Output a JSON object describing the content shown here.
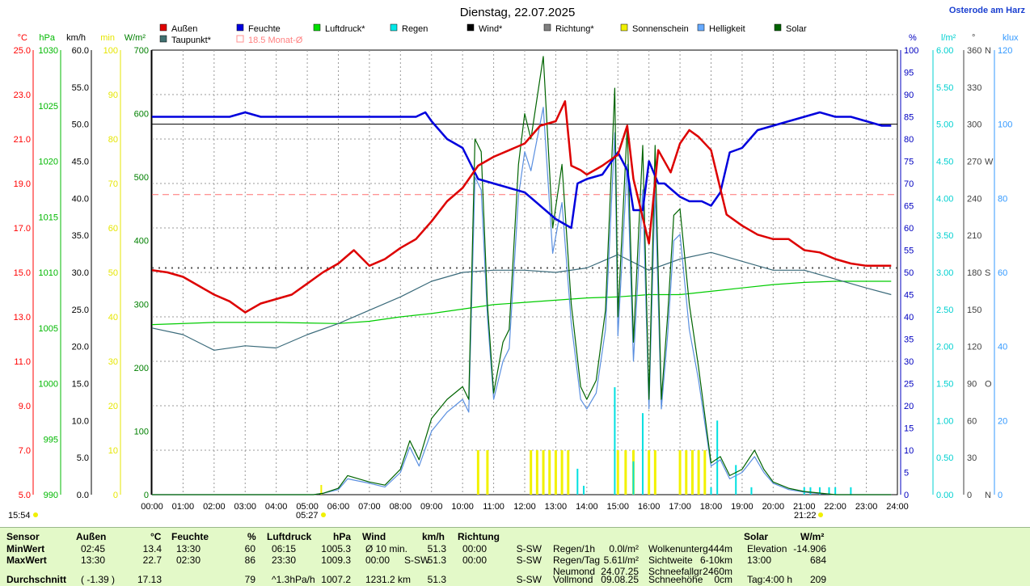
{
  "title": "Dienstag, 22.07.2025",
  "location": "Osterode am Harz",
  "chart_data": {
    "type": "line",
    "x_range": [
      0,
      24
    ],
    "x_ticks": [
      "00:00",
      "01:00",
      "02:00",
      "03:00",
      "04:00",
      "05:00",
      "06:00",
      "07:00",
      "08:00",
      "09:00",
      "10:00",
      "11:00",
      "12:00",
      "13:00",
      "14:00",
      "15:00",
      "16:00",
      "17:00",
      "18:00",
      "19:00",
      "20:00",
      "21:00",
      "22:00",
      "23:00",
      "24:00"
    ],
    "axes": {
      "temp": {
        "unit": "°C",
        "color": "#ff0000",
        "range": [
          5,
          25
        ],
        "ticks": [
          "5.0",
          "7.0",
          "9.0",
          "11.0",
          "13.0",
          "15.0",
          "17.0",
          "19.0",
          "21.0",
          "23.0",
          "25.0"
        ]
      },
      "press": {
        "unit": "hPa",
        "color": "#00b800",
        "range": [
          990,
          1030
        ],
        "ticks": [
          "990",
          "995",
          "1000",
          "1005",
          "1010",
          "1015",
          "1020",
          "1025",
          "1030"
        ]
      },
      "wind": {
        "unit": "km/h",
        "color": "#000000",
        "range": [
          0,
          60
        ],
        "ticks": [
          "0.0",
          "5.0",
          "10.0",
          "15.0",
          "20.0",
          "25.0",
          "30.0",
          "35.0",
          "40.0",
          "45.0",
          "50.0",
          "55.0",
          "60.0"
        ]
      },
      "sun": {
        "unit": "min",
        "color": "#e6e600",
        "range": [
          0,
          100
        ],
        "ticks": [
          "0",
          "10",
          "20",
          "30",
          "40",
          "50",
          "60",
          "70",
          "80",
          "90",
          "100"
        ]
      },
      "solar": {
        "unit": "W/m²",
        "color": "#008000",
        "range": [
          0,
          700
        ],
        "ticks": [
          "0",
          "100",
          "200",
          "300",
          "400",
          "500",
          "600",
          "700"
        ]
      },
      "hum": {
        "unit": "%",
        "color": "#0000c0",
        "range": [
          0,
          100
        ],
        "ticks": [
          "0",
          "5",
          "10",
          "15",
          "20",
          "25",
          "30",
          "35",
          "40",
          "45",
          "50",
          "55",
          "60",
          "65",
          "70",
          "75",
          "80",
          "85",
          "90",
          "95",
          "100"
        ]
      },
      "rain": {
        "unit": "l/m²",
        "color": "#00d0d0",
        "range": [
          0,
          6
        ],
        "ticks": [
          "0.00",
          "0.50",
          "1.00",
          "1.50",
          "2.00",
          "2.50",
          "3.00",
          "3.50",
          "4.00",
          "4.50",
          "5.00",
          "5.50",
          "6.00"
        ]
      },
      "dir": {
        "unit": "°",
        "color": "#404040",
        "range": [
          0,
          360
        ],
        "ticks": [
          "0",
          "30",
          "60",
          "90",
          "120",
          "150",
          "180",
          "210",
          "240",
          "270",
          "300",
          "330",
          "360"
        ],
        "letters": [
          "N",
          "",
          "",
          "O",
          "",
          "",
          "S",
          "",
          "",
          "W",
          "",
          "",
          "N"
        ]
      },
      "lux": {
        "unit": "klux",
        "color": "#3399ff",
        "range": [
          0,
          120
        ],
        "ticks": [
          "0",
          "20",
          "40",
          "60",
          "80",
          "100",
          "120"
        ]
      }
    },
    "legend": [
      {
        "name": "Außen",
        "color": "#e00000"
      },
      {
        "name": "Feuchte",
        "color": "#0000e0"
      },
      {
        "name": "Luftdruck*",
        "color": "#00e000"
      },
      {
        "name": "Regen",
        "color": "#00e8e8"
      },
      {
        "name": "Wind*",
        "color": "#000000"
      },
      {
        "name": "Richtung*",
        "color": "#808080"
      },
      {
        "name": "Sonnenschein",
        "color": "#f0f000"
      },
      {
        "name": "Helligkeit",
        "color": "#66aaff"
      },
      {
        "name": "Solar",
        "color": "#006400"
      },
      {
        "name": "Taupunkt*",
        "color": "#407070"
      },
      {
        "name": "18.5 Monat-Ø",
        "color": "#ff9090"
      }
    ],
    "month_avg_temp": 18.5,
    "dotted_ref_temp": 15.2,
    "wind_dir_line": 300,
    "sunrise": "05:27",
    "sunset": "21:22",
    "current_time": "15:54",
    "series": [
      {
        "name": "Außen",
        "axis": "temp",
        "color": "#dd0000",
        "width": 2.5,
        "x": [
          0,
          0.5,
          1,
          1.5,
          2,
          2.5,
          3,
          3.5,
          4,
          4.5,
          5,
          5.5,
          6,
          6.5,
          7,
          7.5,
          8,
          8.5,
          9,
          9.5,
          10,
          10.5,
          11,
          11.5,
          12,
          12.5,
          13,
          13.3,
          13.5,
          13.8,
          14,
          14.5,
          15,
          15.3,
          15.5,
          16,
          16.3,
          16.7,
          17,
          17.3,
          17.6,
          18,
          18.5,
          19,
          19.5,
          20,
          20.5,
          21,
          21.5,
          22,
          22.5,
          23,
          23.5,
          23.8
        ],
        "y": [
          15.1,
          15.0,
          14.8,
          14.4,
          14.0,
          13.7,
          13.2,
          13.6,
          13.8,
          14.0,
          14.5,
          15.0,
          15.4,
          16.0,
          15.3,
          15.6,
          16.1,
          16.5,
          17.3,
          18.2,
          18.8,
          19.8,
          20.2,
          20.5,
          20.8,
          21.6,
          21.8,
          22.7,
          19.8,
          19.6,
          19.4,
          19.8,
          20.3,
          21.6,
          19.2,
          16.3,
          20.5,
          19.5,
          20.8,
          21.4,
          21.1,
          20.5,
          17.6,
          17.1,
          16.7,
          16.5,
          16.5,
          16.0,
          15.9,
          15.6,
          15.4,
          15.3,
          15.3,
          15.3
        ]
      },
      {
        "name": "Feuchte",
        "axis": "hum",
        "color": "#0000dd",
        "width": 2.5,
        "x": [
          0,
          1,
          2,
          2.5,
          3,
          3.5,
          4,
          5,
          6,
          7,
          8,
          8.5,
          8.8,
          9,
          9.5,
          10,
          10.5,
          11,
          11.5,
          12,
          12.5,
          13,
          13.5,
          13.7,
          14,
          14.5,
          15,
          15.3,
          15.5,
          15.8,
          16,
          16.3,
          16.5,
          17,
          17.3,
          17.7,
          18,
          18.3,
          18.6,
          19,
          19.5,
          20,
          20.5,
          21,
          21.5,
          22,
          22.5,
          23,
          23.5,
          23.8
        ],
        "y": [
          85,
          85,
          85,
          85,
          86,
          85,
          85,
          85,
          85,
          85,
          85,
          85,
          86,
          84,
          80,
          78,
          71,
          70,
          69,
          68,
          65,
          62,
          60,
          70,
          71,
          72,
          77,
          73,
          64,
          64,
          75,
          70,
          70,
          67,
          66,
          66,
          65,
          68,
          77,
          78,
          82,
          83,
          84,
          85,
          86,
          85,
          85,
          84,
          83,
          83
        ]
      },
      {
        "name": "Luftdruck*",
        "axis": "press",
        "color": "#00cc00",
        "width": 1.2,
        "x": [
          0,
          2,
          4,
          6,
          7,
          8,
          9,
          10,
          11,
          12,
          13,
          14,
          15,
          16,
          17,
          18,
          19,
          20,
          21,
          22,
          23,
          23.8
        ],
        "y": [
          1005.3,
          1005.5,
          1005.5,
          1005.4,
          1005.6,
          1006.0,
          1006.3,
          1006.7,
          1007.1,
          1007.3,
          1007.5,
          1007.7,
          1007.8,
          1008.0,
          1008.0,
          1008.3,
          1008.6,
          1008.9,
          1009.1,
          1009.2,
          1009.2,
          1009.2
        ]
      },
      {
        "name": "Taupunkt*",
        "axis": "temp",
        "color": "#3a6a7a",
        "width": 1.2,
        "x": [
          0,
          1,
          2,
          3,
          4,
          5,
          6,
          7,
          8,
          9,
          10,
          11,
          12,
          13,
          14,
          15,
          16,
          17,
          18,
          19,
          20,
          21,
          22,
          23,
          23.8
        ],
        "y": [
          12.5,
          12.2,
          11.5,
          11.7,
          11.6,
          12.2,
          12.7,
          13.3,
          13.9,
          14.6,
          15.0,
          15.1,
          15.1,
          15.0,
          15.2,
          15.8,
          15.1,
          15.6,
          15.9,
          15.5,
          15.1,
          15.1,
          14.7,
          14.3,
          14.0
        ]
      },
      {
        "name": "Solar",
        "axis": "solar",
        "color": "#006400",
        "width": 1.2,
        "x": [
          0,
          4.5,
          5.2,
          5.5,
          6,
          6.3,
          7,
          7.5,
          8,
          8.3,
          8.6,
          9,
          9.5,
          10,
          10.2,
          10.4,
          10.6,
          10.8,
          11,
          11.3,
          11.5,
          11.8,
          12,
          12.2,
          12.6,
          12.9,
          13.2,
          13.5,
          13.8,
          14,
          14.3,
          14.6,
          14.9,
          15,
          15.3,
          15.5,
          15.8,
          16,
          16.2,
          16.4,
          16.6,
          16.8,
          17,
          17.3,
          17.6,
          18,
          18.3,
          18.6,
          19,
          19.4,
          19.7,
          20,
          20.5,
          21,
          21.4,
          22,
          23,
          23.8
        ],
        "y": [
          0,
          0,
          0,
          2,
          10,
          30,
          20,
          15,
          40,
          85,
          55,
          120,
          150,
          170,
          150,
          560,
          540,
          300,
          160,
          240,
          260,
          520,
          600,
          560,
          690,
          420,
          520,
          300,
          170,
          150,
          180,
          290,
          640,
          280,
          580,
          240,
          550,
          150,
          550,
          150,
          280,
          440,
          450,
          300,
          200,
          50,
          60,
          30,
          40,
          70,
          40,
          20,
          10,
          5,
          3,
          0,
          0,
          0
        ]
      },
      {
        "name": "Helligkeit",
        "axis": "solar",
        "color": "#5a8fe0",
        "width": 1.2,
        "x": [
          0,
          4.5,
          5.2,
          5.5,
          6,
          6.3,
          7,
          7.5,
          8,
          8.3,
          8.6,
          9,
          9.5,
          10,
          10.2,
          10.4,
          10.6,
          10.8,
          11,
          11.3,
          11.5,
          11.8,
          12,
          12.2,
          12.6,
          12.9,
          13.2,
          13.5,
          13.8,
          14,
          14.3,
          14.6,
          14.9,
          15,
          15.3,
          15.5,
          15.8,
          16,
          16.2,
          16.4,
          16.6,
          16.8,
          17,
          17.3,
          17.6,
          18,
          18.3,
          18.6,
          19,
          19.4,
          19.7,
          20,
          20.5,
          21,
          21.4,
          22,
          23,
          23.8
        ],
        "y": [
          0,
          0,
          0,
          2,
          8,
          25,
          18,
          12,
          35,
          75,
          45,
          100,
          130,
          150,
          130,
          500,
          480,
          280,
          150,
          210,
          230,
          470,
          540,
          510,
          610,
          380,
          460,
          270,
          150,
          135,
          160,
          260,
          570,
          250,
          520,
          210,
          480,
          135,
          480,
          135,
          250,
          400,
          410,
          260,
          180,
          45,
          55,
          25,
          35,
          60,
          35,
          18,
          8,
          4,
          2,
          0,
          0,
          0
        ]
      }
    ],
    "wind_dir_const": 85.0,
    "sun_bars_x": [
      10.5,
      10.8,
      12.2,
      12.4,
      12.6,
      12.8,
      13.0,
      13.2,
      13.4,
      15.0,
      15.25,
      15.5,
      16.0,
      16.2,
      17.0,
      17.2,
      17.4,
      17.6,
      17.8
    ],
    "sun_bars_val": [
      10,
      10,
      10,
      10,
      10,
      10,
      10,
      10,
      10,
      10,
      10,
      10,
      10,
      10,
      10,
      10,
      10,
      10,
      10
    ],
    "rain_bars_x": [
      13.7,
      13.9,
      14.9,
      15.5,
      15.8,
      18.0,
      18.2,
      18.8,
      19.3,
      21.0,
      21.2,
      21.5,
      21.8,
      22.0,
      22.5
    ],
    "rain_bars_val": [
      0.35,
      0.12,
      1.45,
      0.45,
      1.1,
      0.1,
      1.0,
      0.4,
      0.1,
      0.1,
      0.1,
      0.1,
      0.1,
      0.1,
      0.1
    ]
  },
  "table": {
    "headers": {
      "sensor": "Sensor",
      "aussen": "Außen",
      "aussen_unit": "°C",
      "feuchte": "Feuchte",
      "feuchte_unit": "%",
      "druck": "Luftdruck",
      "druck_unit": "hPa",
      "wind": "Wind",
      "wind_unit": "km/h",
      "richtung": "Richtung",
      "solar": "Solar",
      "solar_unit": "W/m²"
    },
    "rows": [
      {
        "label": "MinWert",
        "a_t": "02:45",
        "a_v": "13.4",
        "f_t": "13:30",
        "f_v": "60",
        "d_t": "06:15",
        "d_v": "1005.3",
        "w_t": "Ø 10 min.",
        "w_v": "51.3",
        "r_t": "00:00",
        "r_v": "S-SW",
        "x1": "Regen/1h",
        "x1v": "0.0l/m²",
        "x2": "Wolkenunterg",
        "x2v": "444m",
        "s_t": "Elevation",
        "s_v": "-14.906"
      },
      {
        "label": "MaxWert",
        "a_t": "13:30",
        "a_v": "22.7",
        "f_t": "02:30",
        "f_v": "86",
        "d_t": "23:30",
        "d_v": "1009.3",
        "w_t": "00:00",
        "w_m": "S-SW",
        "w_v": "51.3",
        "r_t": "00:00",
        "r_v": "S-SW",
        "x1": "Regen/Tag",
        "x1v": "5.61l/m²",
        "x2": "Sichtweite",
        "x2v": "6-10km",
        "s_t": "13:00",
        "s_v": "684"
      },
      {
        "label": "",
        "a_t": "",
        "a_v": "",
        "f_t": "",
        "f_v": "",
        "d_t": "",
        "d_v": "",
        "w_t": "",
        "w_v": "",
        "r_t": "",
        "r_v": "",
        "x1": "Neumond",
        "x1v": "24.07.25",
        "x2": "Schneefallgr",
        "x2v": "2460m",
        "s_t": "",
        "s_v": ""
      },
      {
        "label": "Durchschnitt",
        "a_t": "( -1.39 )",
        "a_v": "17.13",
        "f_t": "",
        "f_v": "79",
        "d_t": "^1.3hPa/h",
        "d_v": "1007.2",
        "w_t": "1231.2 km",
        "w_v": "51.3",
        "r_t": "",
        "r_v": "S-SW",
        "x1": "Vollmond",
        "x1v": "09.08.25",
        "x2": "Schneehöhe",
        "x2v": "0cm",
        "s_t": "Tag:4:00 h",
        "s_v": "209"
      }
    ]
  }
}
